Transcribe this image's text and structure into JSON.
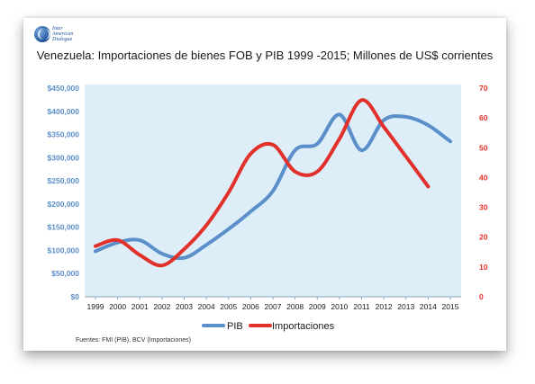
{
  "logo": {
    "line1": "Inter",
    "line2": "American",
    "line3": "Dialogue"
  },
  "title": "Venezuela: Importaciones de bienes FOB y PIB 1999 -2015; Millones de US$ corrientes",
  "footnote": "Fuentes: FMI (PIB), BCV (Importaciones)",
  "colors": {
    "pib": "#5b8fc9",
    "importaciones": "#e2302a",
    "plot_bg": "#ddeef8",
    "left_axis": "#5b8fc9",
    "right_axis": "#e2302a"
  },
  "chart_data": {
    "type": "line",
    "title": "Venezuela: Importaciones de bienes FOB y PIB 1999 -2015; Millones de US$ corrientes",
    "x": [
      "1999",
      "2000",
      "2001",
      "2002",
      "2003",
      "2004",
      "2005",
      "2006",
      "2007",
      "2008",
      "2009",
      "2010",
      "2011",
      "2012",
      "2013",
      "2014",
      "2015"
    ],
    "y_left": {
      "ylim": [
        0,
        450000
      ],
      "ticks": [
        0,
        50000,
        100000,
        150000,
        200000,
        250000,
        300000,
        350000,
        400000,
        450000
      ],
      "tick_labels": [
        "$0",
        "$50,000",
        "$100,000",
        "$150,000",
        "$200,000",
        "$250,000",
        "$300,000",
        "$350,000",
        "$400,000",
        "$450,000"
      ]
    },
    "y_right": {
      "ylim": [
        0,
        70
      ],
      "ticks": [
        0,
        10,
        20,
        30,
        40,
        50,
        60,
        70
      ],
      "tick_labels": [
        "0",
        "10",
        "20",
        "30",
        "40",
        "50",
        "60",
        "70"
      ]
    },
    "series": [
      {
        "name": "PIB",
        "axis": "left",
        "values": [
          98000,
          117000,
          122000,
          93000,
          84000,
          112000,
          146000,
          184000,
          228000,
          316000,
          330000,
          393000,
          316000,
          381000,
          388000,
          370000,
          335000
        ]
      },
      {
        "name": "Importaciones",
        "axis": "right",
        "values": [
          17,
          19,
          14,
          10.5,
          16,
          24,
          35,
          48,
          51,
          42,
          42,
          53,
          66,
          57,
          47,
          37,
          null
        ]
      }
    ],
    "legend": {
      "position": "bottom-center",
      "items": [
        "PIB",
        "Importaciones"
      ]
    },
    "grid": false
  }
}
